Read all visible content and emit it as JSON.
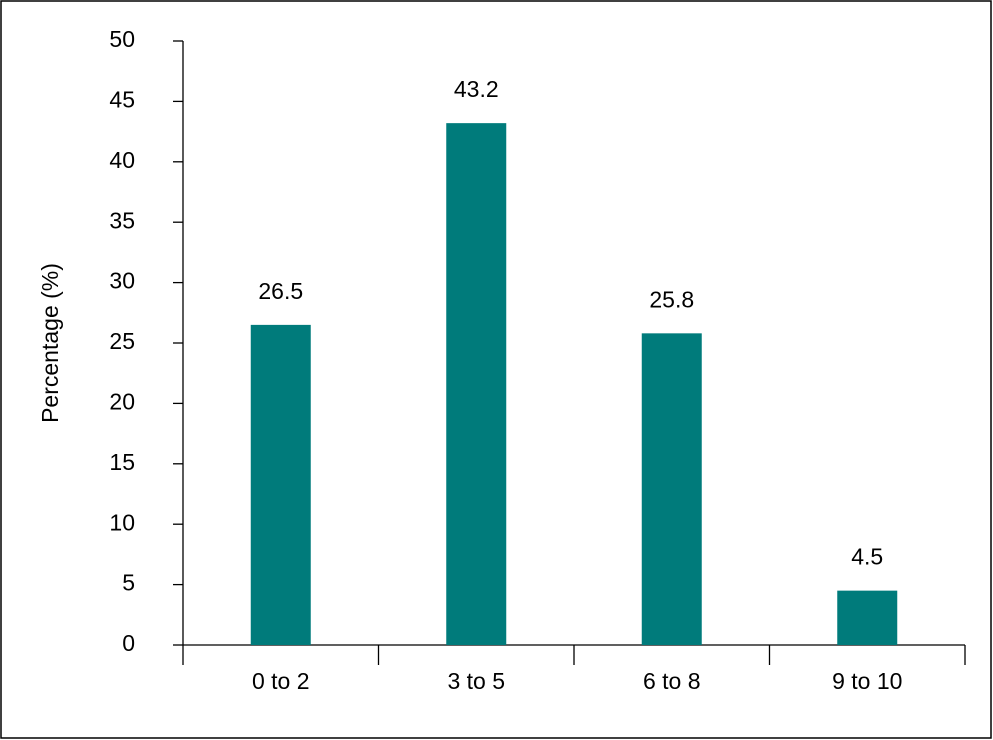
{
  "chart_data": {
    "type": "bar",
    "y_label": "Percentage (%)",
    "categories": [
      "0 to 2",
      "3 to 5",
      "6 to 8",
      "9 to 10"
    ],
    "values": [
      26.5,
      43.2,
      25.8,
      4.5
    ],
    "color": "#007b7b",
    "ylim": [
      0,
      50
    ],
    "yticks": [
      0,
      5,
      10,
      15,
      20,
      25,
      30,
      35,
      40,
      45,
      50
    ],
    "grid": false,
    "data_labels": true
  }
}
